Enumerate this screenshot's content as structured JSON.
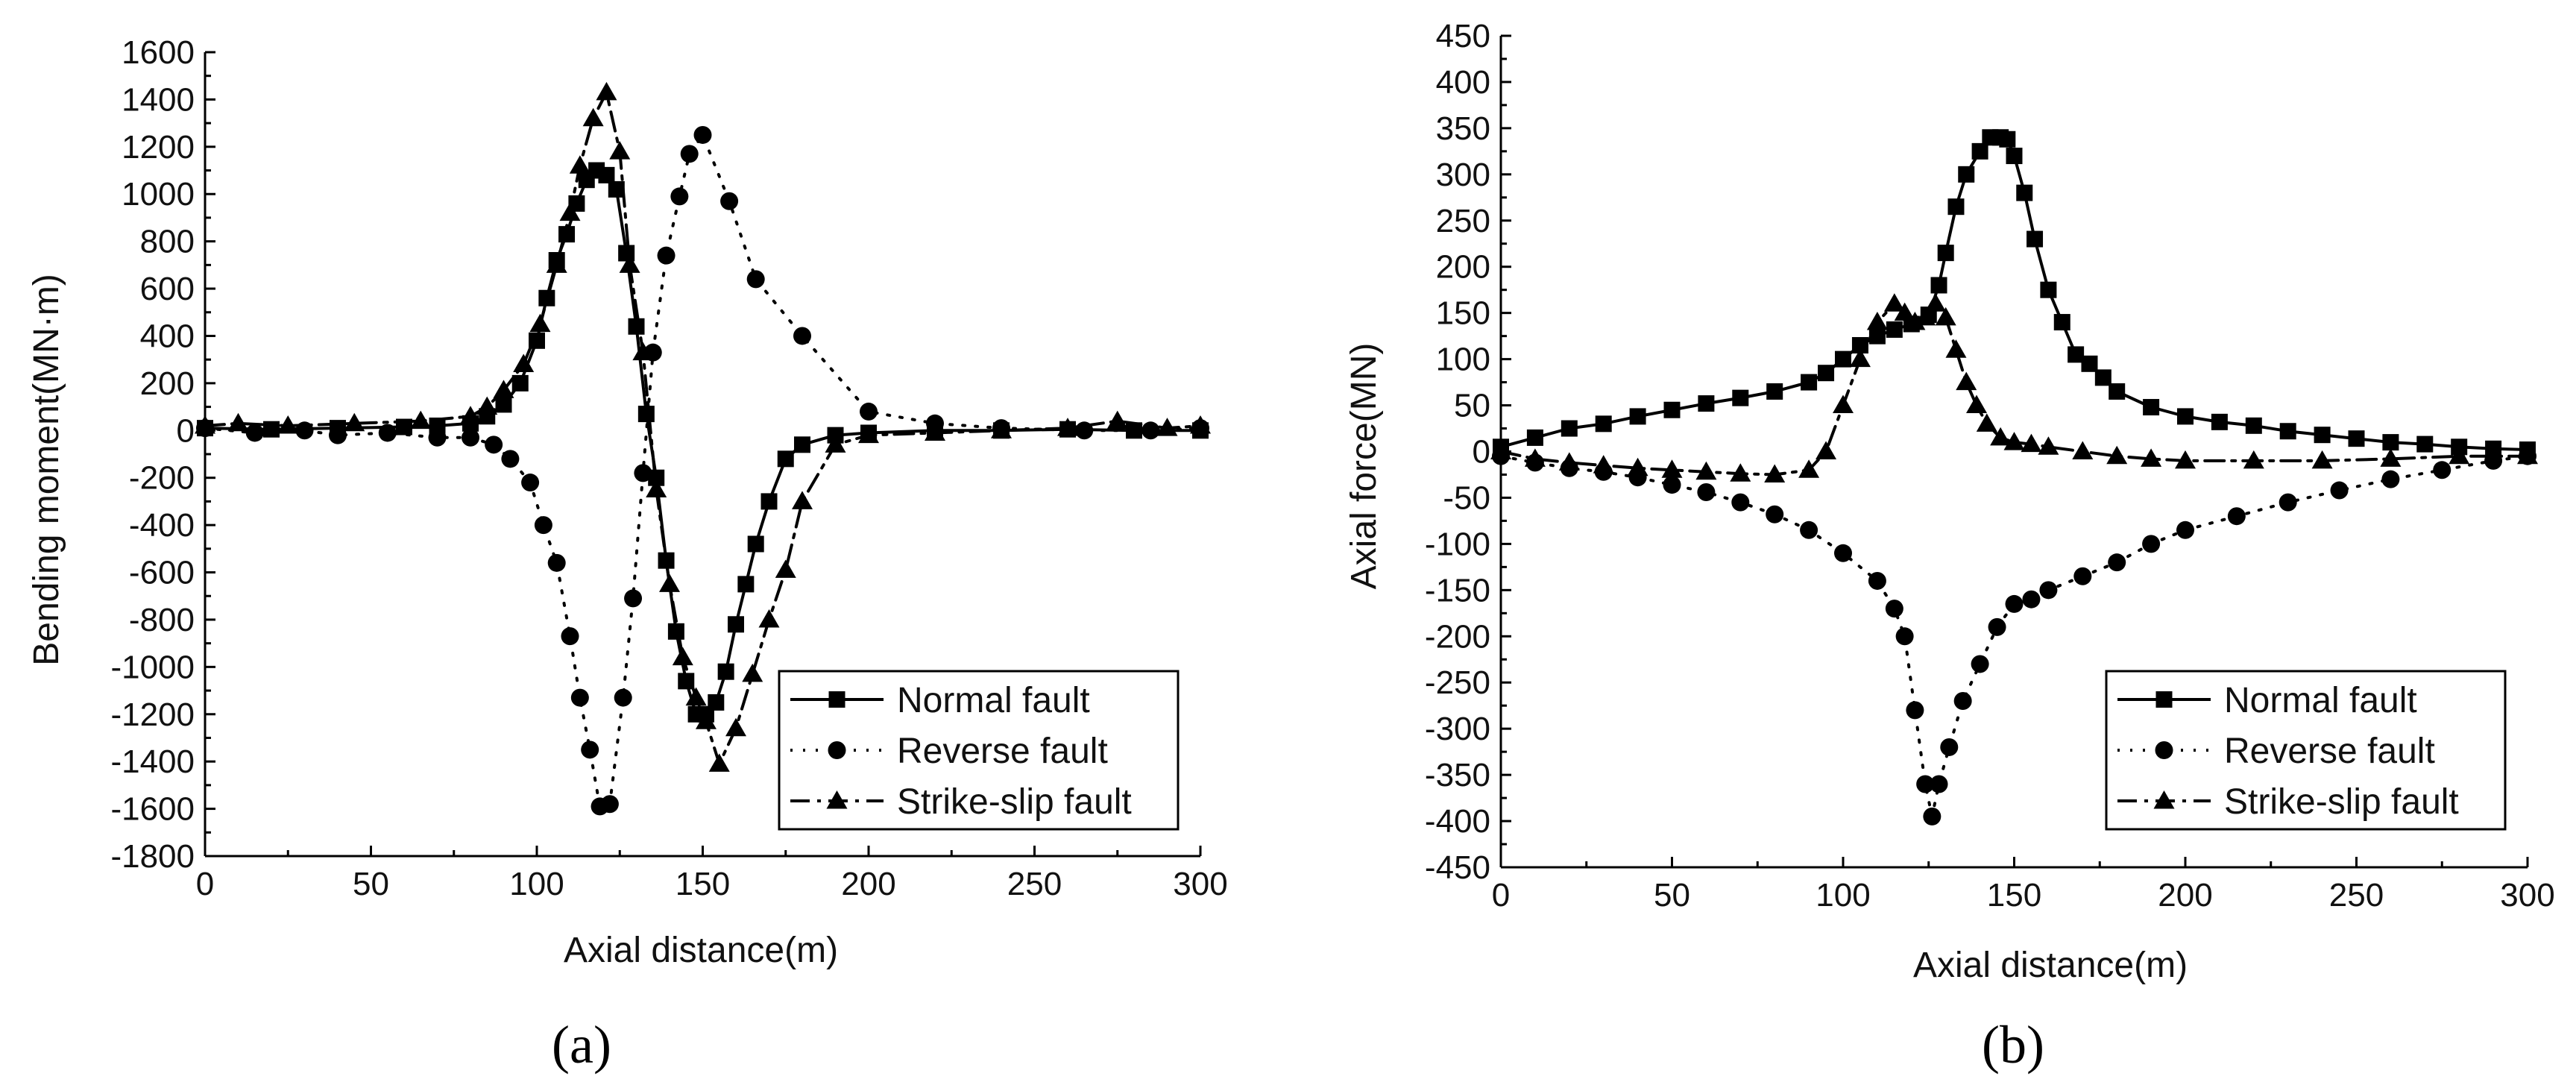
{
  "chart_data": [
    {
      "type": "line",
      "panel_label": "(a)",
      "xlabel": "Axial distance(m)",
      "ylabel": "Bending moment(MN·m)",
      "xlim": [
        0,
        300
      ],
      "ylim": [
        -1800,
        1600
      ],
      "xticks": [
        0,
        50,
        100,
        150,
        200,
        250,
        300
      ],
      "yticks": [
        -1800,
        -1600,
        -1400,
        -1200,
        -1000,
        -800,
        -600,
        -400,
        -200,
        0,
        200,
        400,
        600,
        800,
        1000,
        1200,
        1400,
        1600
      ],
      "legend_position": "bottom-right",
      "series": [
        {
          "name": "Normal fault",
          "style": "solid",
          "marker": "square",
          "x": [
            0,
            20,
            40,
            60,
            70,
            80,
            85,
            90,
            95,
            100,
            103,
            106,
            109,
            112,
            115,
            118,
            121,
            124,
            127,
            130,
            133,
            136,
            139,
            142,
            145,
            148,
            151,
            154,
            157,
            160,
            163,
            166,
            170,
            175,
            180,
            190,
            200,
            220,
            240,
            260,
            280,
            300
          ],
          "y": [
            10,
            5,
            10,
            15,
            20,
            30,
            60,
            110,
            200,
            380,
            560,
            720,
            830,
            960,
            1060,
            1100,
            1080,
            1020,
            750,
            440,
            70,
            -200,
            -550,
            -850,
            -1060,
            -1200,
            -1200,
            -1150,
            -1020,
            -820,
            -650,
            -480,
            -300,
            -120,
            -60,
            -20,
            -10,
            0,
            0,
            5,
            0,
            0
          ]
        },
        {
          "name": "Reverse fault",
          "style": "dotted",
          "marker": "circle",
          "x": [
            0,
            15,
            30,
            40,
            55,
            70,
            80,
            87,
            92,
            98,
            102,
            106,
            110,
            113,
            116,
            119,
            122,
            126,
            129,
            132,
            135,
            139,
            143,
            146,
            150,
            158,
            166,
            180,
            200,
            220,
            240,
            265,
            285,
            300
          ],
          "y": [
            10,
            -10,
            0,
            -20,
            -10,
            -30,
            -30,
            -60,
            -120,
            -220,
            -400,
            -560,
            -870,
            -1130,
            -1350,
            -1590,
            -1580,
            -1130,
            -710,
            -180,
            330,
            740,
            990,
            1170,
            1250,
            970,
            640,
            400,
            80,
            30,
            10,
            0,
            0,
            10
          ]
        },
        {
          "name": "Strike-slip fault",
          "style": "dashdot",
          "marker": "triangle",
          "x": [
            0,
            10,
            25,
            45,
            65,
            80,
            85,
            90,
            96,
            101,
            106,
            110,
            113,
            117,
            121,
            125,
            128,
            132,
            136,
            140,
            144,
            148,
            151,
            155,
            160,
            165,
            170,
            175,
            180,
            190,
            200,
            220,
            240,
            260,
            275,
            290,
            300
          ],
          "y": [
            20,
            30,
            20,
            30,
            40,
            60,
            100,
            170,
            280,
            450,
            700,
            920,
            1120,
            1320,
            1430,
            1180,
            700,
            330,
            -250,
            -650,
            -960,
            -1130,
            -1230,
            -1410,
            -1260,
            -1030,
            -800,
            -590,
            -300,
            -60,
            -20,
            -10,
            0,
            10,
            40,
            10,
            20
          ]
        }
      ]
    },
    {
      "type": "line",
      "panel_label": "(b)",
      "xlabel": "Axial distance(m)",
      "ylabel": "Axial force(MN)",
      "xlim": [
        0,
        300
      ],
      "ylim": [
        -450,
        450
      ],
      "xticks": [
        0,
        50,
        100,
        150,
        200,
        250,
        300
      ],
      "yticks": [
        -450,
        -400,
        -350,
        -300,
        -250,
        -200,
        -150,
        -100,
        -50,
        0,
        50,
        100,
        150,
        200,
        250,
        300,
        350,
        400,
        450
      ],
      "legend_position": "bottom-right",
      "series": [
        {
          "name": "Normal fault",
          "style": "solid",
          "marker": "square",
          "x": [
            0,
            10,
            20,
            30,
            40,
            50,
            60,
            70,
            80,
            90,
            95,
            100,
            105,
            110,
            115,
            120,
            125,
            128,
            130,
            133,
            136,
            140,
            143,
            146,
            148,
            150,
            153,
            156,
            160,
            164,
            168,
            172,
            176,
            180,
            190,
            200,
            210,
            220,
            230,
            240,
            250,
            260,
            270,
            280,
            290,
            300
          ],
          "y": [
            5,
            15,
            25,
            30,
            38,
            45,
            52,
            58,
            65,
            75,
            85,
            100,
            115,
            125,
            132,
            138,
            148,
            180,
            215,
            265,
            300,
            325,
            340,
            340,
            338,
            320,
            280,
            230,
            175,
            140,
            105,
            95,
            80,
            65,
            48,
            38,
            32,
            28,
            22,
            18,
            14,
            10,
            8,
            5,
            3,
            2
          ]
        },
        {
          "name": "Reverse fault",
          "style": "dotted",
          "marker": "circle",
          "x": [
            0,
            10,
            20,
            30,
            40,
            50,
            60,
            70,
            80,
            90,
            100,
            110,
            115,
            118,
            121,
            124,
            126,
            128,
            131,
            135,
            140,
            145,
            150,
            155,
            160,
            170,
            180,
            190,
            200,
            215,
            230,
            245,
            260,
            275,
            290,
            300
          ],
          "y": [
            -5,
            -12,
            -18,
            -22,
            -28,
            -36,
            -44,
            -55,
            -68,
            -85,
            -110,
            -140,
            -170,
            -200,
            -280,
            -360,
            -395,
            -360,
            -320,
            -270,
            -230,
            -190,
            -165,
            -160,
            -150,
            -135,
            -120,
            -100,
            -85,
            -70,
            -55,
            -42,
            -30,
            -20,
            -10,
            -5
          ]
        },
        {
          "name": "Strike-slip fault",
          "style": "dashdot",
          "marker": "triangle",
          "x": [
            0,
            10,
            20,
            30,
            40,
            50,
            60,
            70,
            80,
            90,
            95,
            100,
            105,
            110,
            115,
            118,
            121,
            124,
            127,
            130,
            133,
            136,
            139,
            142,
            146,
            150,
            155,
            160,
            170,
            180,
            190,
            200,
            220,
            240,
            260,
            280,
            300
          ],
          "y": [
            0,
            -8,
            -12,
            -15,
            -18,
            -20,
            -22,
            -24,
            -25,
            -20,
            0,
            50,
            100,
            140,
            160,
            150,
            140,
            145,
            160,
            145,
            110,
            75,
            50,
            30,
            15,
            10,
            8,
            5,
            0,
            -5,
            -8,
            -10,
            -10,
            -10,
            -8,
            -5,
            -5
          ]
        }
      ]
    }
  ]
}
